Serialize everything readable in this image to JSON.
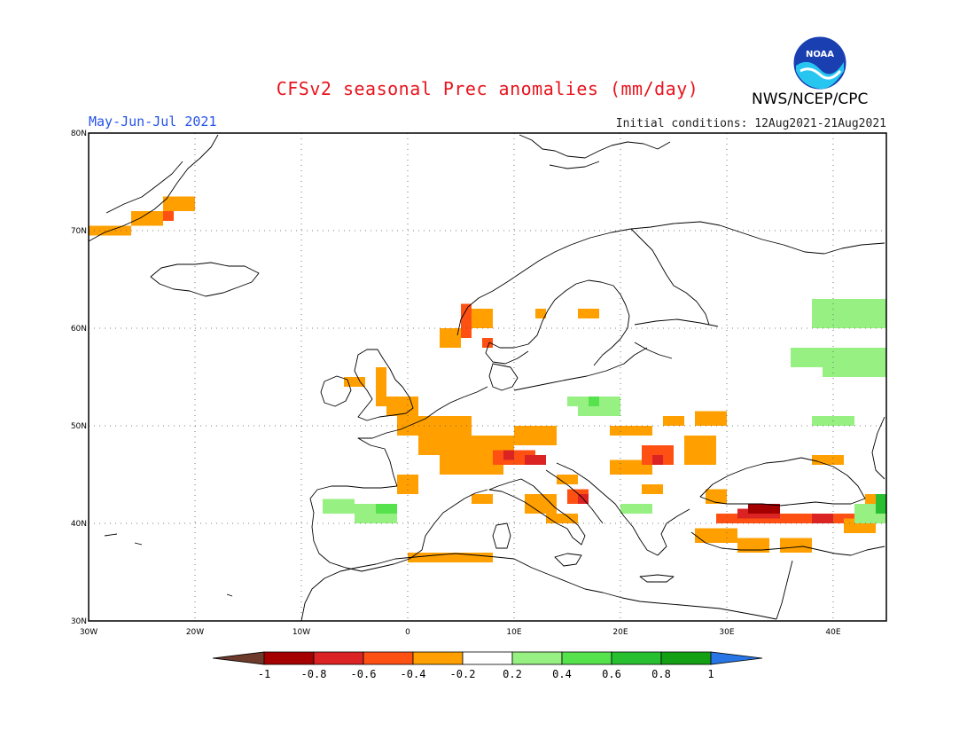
{
  "title": "CFSv2 seasonal Prec anomalies (mm/day)",
  "period": "May-Jun-Jul 2021",
  "initial_conditions": "Initial conditions: 12Aug2021-21Aug2021",
  "agency": "NWS/NCEP/CPC",
  "logo_text": "NOAA",
  "map": {
    "lon_range": [
      -30,
      45
    ],
    "lat_range": [
      30,
      80
    ],
    "lon_ticks": [
      "30W",
      "20W",
      "10W",
      "0",
      "10E",
      "20E",
      "30E",
      "40E"
    ],
    "lat_ticks": [
      "30N",
      "40N",
      "50N",
      "60N",
      "70N",
      "80N"
    ],
    "grid": "dotted"
  },
  "colorbar": {
    "labels": [
      "-1",
      "-0.8",
      "-0.6",
      "-0.4",
      "-0.2",
      "0.2",
      "0.4",
      "0.6",
      "0.8",
      "1"
    ],
    "colors": {
      "below_-1": "#6e3a2c",
      "-1_to_-0.8": "#a50000",
      "-0.8_to_-0.6": "#dc2323",
      "-0.6_to_-0.4": "#ff5014",
      "-0.4_to_-0.2": "#ffa000",
      "-0.2_to_0.2": "#ffffff",
      "0.2_to_0.4": "#96f082",
      "0.4_to_0.6": "#55e24d",
      "0.6_to_0.8": "#28c031",
      "0.8_to_1": "#14a014",
      "above_1": "#2876e6"
    }
  }
}
